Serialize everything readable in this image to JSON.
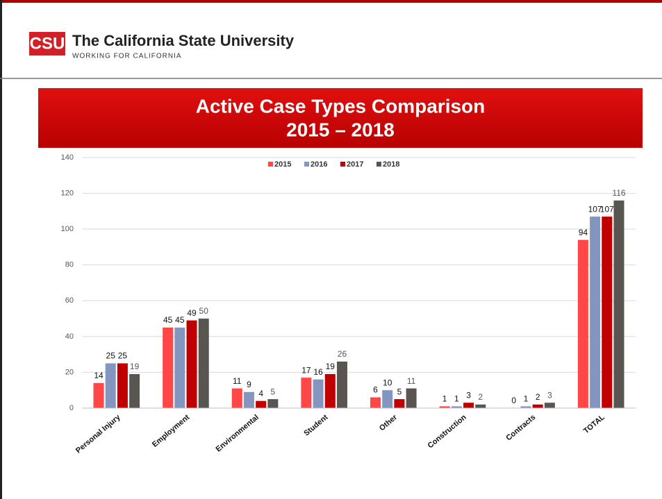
{
  "header": {
    "logo": "CSU",
    "name": "The California State University",
    "tagline": "WORKING FOR CALIFORNIA"
  },
  "chart_data": {
    "type": "bar",
    "title": "Active Case Types Comparison",
    "subtitle": "2015 – 2018",
    "categories": [
      "Personal Injury",
      "Employment",
      "Environmental",
      "Student",
      "Other",
      "Construction",
      "Contracts",
      "TOTAL"
    ],
    "series": [
      {
        "name": "2015",
        "color": "#ff4747",
        "values": [
          14,
          45,
          11,
          17,
          6,
          1,
          0,
          94
        ]
      },
      {
        "name": "2016",
        "color": "#8496c0",
        "values": [
          25,
          45,
          9,
          16,
          10,
          1,
          1,
          107
        ]
      },
      {
        "name": "2017",
        "color": "#c00000",
        "values": [
          25,
          49,
          4,
          19,
          5,
          3,
          2,
          107
        ]
      },
      {
        "name": "2018",
        "color": "#595651",
        "values": [
          19,
          50,
          5,
          26,
          11,
          2,
          3,
          116
        ]
      }
    ],
    "ylim": [
      0,
      140
    ],
    "yticks": [
      0,
      20,
      40,
      60,
      80,
      100,
      120,
      140
    ],
    "grid": true,
    "legend": "top"
  }
}
